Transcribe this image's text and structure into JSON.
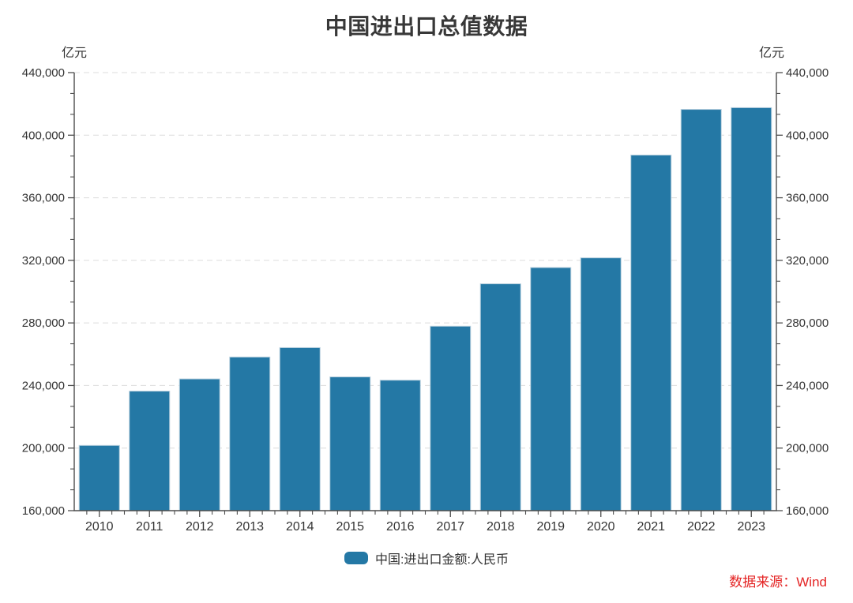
{
  "page": {
    "title": "中国进出口总值数据",
    "source_note": "数据来源：Wind"
  },
  "legend": {
    "label": "中国:进出口金额:人民币"
  },
  "chart_data": {
    "type": "bar",
    "title": "中国进出口总值数据",
    "unit_label_left": "亿元",
    "unit_label_right": "亿元",
    "xlabel": "",
    "ylabel": "亿元",
    "categories": [
      "2010",
      "2011",
      "2012",
      "2013",
      "2014",
      "2015",
      "2016",
      "2017",
      "2018",
      "2019",
      "2020",
      "2021",
      "2022",
      "2023"
    ],
    "series": [
      {
        "name": "中国:进出口金额:人民币",
        "values": [
          201700,
          236400,
          244200,
          258200,
          264200,
          245500,
          243400,
          277900,
          305000,
          315400,
          321600,
          387300,
          416500,
          417600
        ]
      }
    ],
    "ylim": [
      160000,
      440000
    ],
    "ytick_step": 40000,
    "ytick_labels": [
      "160,000",
      "200,000",
      "240,000",
      "280,000",
      "320,000",
      "360,000",
      "400,000",
      "440,000"
    ],
    "y_minor_divisions": 3,
    "x_minor_divisions": 4,
    "grid": "horizontal-dashed",
    "dual_y_axis": true,
    "legend_position": "bottom",
    "source": "数据来源：Wind",
    "bar_color": "#2478a5",
    "bar_edge_color": "#b7cfde",
    "grid_color": "#dcdcdc",
    "axis_color": "#4d4d4d",
    "text_color": "#333333",
    "source_color": "#e42525"
  }
}
